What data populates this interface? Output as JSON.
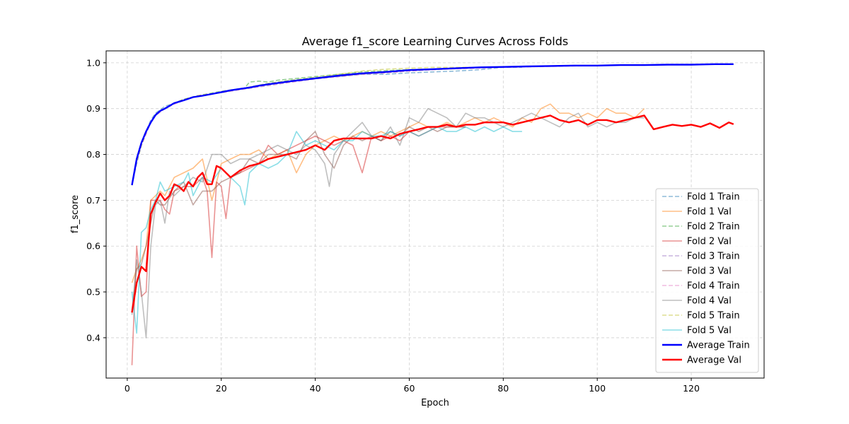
{
  "chart_data": {
    "type": "line",
    "title": "Average f1_score Learning Curves Across Folds",
    "xlabel": "Epoch",
    "ylabel": "f1_score",
    "xlim": [
      -4.5,
      135.5
    ],
    "ylim": [
      0.312,
      1.026
    ],
    "xticks": [
      "0",
      "20",
      "40",
      "60",
      "80",
      "100",
      "120"
    ],
    "yticks": [
      "0.4",
      "0.5",
      "0.6",
      "0.7",
      "0.8",
      "0.9",
      "1.0"
    ],
    "grid": true,
    "legend_position": "lower-right",
    "series": [
      {
        "name": "Fold 1 Train",
        "color": "#1f77b4",
        "style": "dashed",
        "alpha": 0.5,
        "x": [
          1,
          2,
          3,
          4,
          5,
          6,
          8,
          10,
          12,
          15,
          20,
          25,
          30,
          35,
          40,
          45,
          50,
          55,
          60,
          65,
          70,
          75,
          80,
          84
        ],
        "y": [
          0.733,
          0.78,
          0.82,
          0.85,
          0.875,
          0.89,
          0.905,
          0.912,
          0.92,
          0.928,
          0.935,
          0.945,
          0.955,
          0.962,
          0.968,
          0.97,
          0.975,
          0.975,
          0.978,
          0.98,
          0.982,
          0.985,
          0.99,
          0.99
        ]
      },
      {
        "name": "Fold 1 Val",
        "color": "#ff7f0e",
        "style": "solid",
        "alpha": 0.5,
        "x": [
          1,
          2,
          3,
          4,
          5,
          6,
          7,
          8,
          9,
          10,
          12,
          14,
          16,
          18,
          20,
          22,
          24,
          26,
          28,
          30,
          32,
          34,
          36,
          38,
          40,
          42,
          44,
          46,
          48,
          50,
          52,
          54,
          56,
          58,
          60,
          62,
          64,
          66,
          68,
          70,
          72,
          74,
          76,
          78,
          80,
          82,
          84,
          86,
          88,
          90,
          92,
          94,
          96,
          98,
          100,
          102,
          104,
          106,
          108,
          110
        ],
        "y": [
          0.52,
          0.55,
          0.57,
          0.6,
          0.7,
          0.71,
          0.72,
          0.71,
          0.73,
          0.75,
          0.76,
          0.77,
          0.79,
          0.7,
          0.78,
          0.79,
          0.8,
          0.8,
          0.81,
          0.79,
          0.8,
          0.81,
          0.76,
          0.8,
          0.82,
          0.83,
          0.84,
          0.83,
          0.84,
          0.85,
          0.84,
          0.85,
          0.84,
          0.85,
          0.86,
          0.87,
          0.86,
          0.86,
          0.87,
          0.86,
          0.87,
          0.88,
          0.87,
          0.88,
          0.87,
          0.86,
          0.88,
          0.87,
          0.9,
          0.91,
          0.89,
          0.89,
          0.88,
          0.89,
          0.88,
          0.9,
          0.89,
          0.89,
          0.88,
          0.9
        ]
      },
      {
        "name": "Fold 2 Train",
        "color": "#2ca02c",
        "style": "dashed",
        "alpha": 0.5,
        "x": [
          1,
          2,
          3,
          4,
          5,
          6,
          8,
          10,
          12,
          15,
          20,
          25,
          26,
          28,
          30,
          32,
          35,
          40,
          45,
          50,
          55,
          60,
          65,
          70,
          72
        ],
        "y": [
          0.733,
          0.79,
          0.82,
          0.85,
          0.87,
          0.888,
          0.9,
          0.912,
          0.92,
          0.928,
          0.938,
          0.945,
          0.958,
          0.96,
          0.958,
          0.962,
          0.965,
          0.97,
          0.975,
          0.98,
          0.983,
          0.985,
          0.986,
          0.988,
          0.99
        ]
      },
      {
        "name": "Fold 2 Val",
        "color": "#d62728",
        "style": "solid",
        "alpha": 0.5,
        "x": [
          1,
          2,
          3,
          4,
          5,
          6,
          7,
          8,
          9,
          10,
          12,
          14,
          16,
          17,
          18,
          19,
          20,
          21,
          22,
          24,
          26,
          28,
          30,
          32,
          34,
          36,
          38,
          40,
          42,
          44,
          46,
          48,
          50,
          52,
          54,
          56,
          58,
          60,
          62,
          64,
          66,
          68,
          70,
          72
        ],
        "y": [
          0.34,
          0.6,
          0.49,
          0.5,
          0.7,
          0.7,
          0.7,
          0.68,
          0.67,
          0.72,
          0.73,
          0.73,
          0.75,
          0.72,
          0.575,
          0.74,
          0.73,
          0.66,
          0.75,
          0.76,
          0.77,
          0.78,
          0.82,
          0.8,
          0.81,
          0.82,
          0.83,
          0.84,
          0.83,
          0.82,
          0.83,
          0.82,
          0.76,
          0.84,
          0.83,
          0.84,
          0.83,
          0.85,
          0.84,
          0.85,
          0.86,
          0.86,
          0.86,
          0.86
        ]
      },
      {
        "name": "Fold 3 Train",
        "color": "#9467bd",
        "style": "dashed",
        "alpha": 0.5,
        "x": [
          1,
          2,
          3,
          4,
          5,
          6,
          8,
          10,
          12,
          15,
          20,
          25,
          30,
          35,
          40,
          45,
          50,
          55,
          60,
          65,
          70,
          73
        ],
        "y": [
          0.733,
          0.785,
          0.82,
          0.845,
          0.87,
          0.885,
          0.9,
          0.91,
          0.918,
          0.928,
          0.935,
          0.943,
          0.95,
          0.958,
          0.965,
          0.97,
          0.975,
          0.978,
          0.982,
          0.985,
          0.988,
          0.99
        ]
      },
      {
        "name": "Fold 3 Val",
        "color": "#8c564b",
        "style": "solid",
        "alpha": 0.5,
        "x": [
          1,
          2,
          3,
          4,
          5,
          6,
          7,
          8,
          10,
          12,
          14,
          16,
          18,
          20,
          22,
          24,
          26,
          28,
          30,
          32,
          34,
          36,
          38,
          40,
          42,
          44,
          46,
          48,
          50,
          52,
          54,
          56,
          58,
          60,
          62,
          64,
          66,
          68,
          70,
          72
        ],
        "y": [
          0.46,
          0.55,
          0.56,
          0.6,
          0.65,
          0.7,
          0.69,
          0.69,
          0.72,
          0.74,
          0.69,
          0.72,
          0.72,
          0.74,
          0.75,
          0.76,
          0.79,
          0.78,
          0.8,
          0.8,
          0.8,
          0.79,
          0.83,
          0.85,
          0.8,
          0.77,
          0.82,
          0.84,
          0.83,
          0.84,
          0.83,
          0.85,
          0.84,
          0.86,
          0.85,
          0.86,
          0.85,
          0.86,
          0.86,
          0.86
        ]
      },
      {
        "name": "Fold 4 Train",
        "color": "#e377c2",
        "style": "dashed",
        "alpha": 0.5,
        "x": [
          1,
          2,
          3,
          4,
          5,
          6,
          8,
          10,
          12,
          15,
          20,
          25,
          30,
          35,
          40,
          45,
          50,
          55,
          60,
          65,
          70,
          75,
          80,
          85,
          90,
          95,
          100,
          105,
          110
        ],
        "y": [
          0.733,
          0.785,
          0.82,
          0.845,
          0.87,
          0.885,
          0.9,
          0.91,
          0.918,
          0.928,
          0.935,
          0.943,
          0.952,
          0.958,
          0.965,
          0.97,
          0.975,
          0.978,
          0.982,
          0.985,
          0.987,
          0.988,
          0.99,
          0.991,
          0.992,
          0.993,
          0.994,
          0.995,
          0.996
        ]
      },
      {
        "name": "Fold 4 Val",
        "color": "#7f7f7f",
        "style": "solid",
        "alpha": 0.5,
        "x": [
          1,
          2,
          3,
          4,
          5,
          6,
          7,
          8,
          9,
          10,
          12,
          14,
          16,
          18,
          20,
          22,
          24,
          26,
          28,
          30,
          32,
          34,
          36,
          38,
          40,
          42,
          43,
          44,
          46,
          48,
          50,
          52,
          54,
          56,
          58,
          60,
          62,
          64,
          66,
          68,
          70,
          72,
          74,
          76,
          78,
          80,
          82,
          84,
          86,
          88,
          90,
          92,
          94,
          96,
          98,
          100,
          102,
          104,
          106,
          108,
          110
        ],
        "y": [
          0.45,
          0.57,
          0.5,
          0.4,
          0.6,
          0.69,
          0.7,
          0.65,
          0.72,
          0.71,
          0.73,
          0.75,
          0.74,
          0.8,
          0.8,
          0.78,
          0.79,
          0.79,
          0.8,
          0.81,
          0.82,
          0.81,
          0.8,
          0.82,
          0.81,
          0.78,
          0.73,
          0.8,
          0.83,
          0.85,
          0.87,
          0.84,
          0.83,
          0.86,
          0.82,
          0.88,
          0.87,
          0.9,
          0.89,
          0.88,
          0.86,
          0.89,
          0.88,
          0.88,
          0.87,
          0.86,
          0.87,
          0.88,
          0.89,
          0.88,
          0.87,
          0.86,
          0.88,
          0.89,
          0.86,
          0.87,
          0.86,
          0.87,
          0.87,
          0.88,
          0.88
        ]
      },
      {
        "name": "Fold 5 Train",
        "color": "#bcbd22",
        "style": "dashed",
        "alpha": 0.5,
        "x": [
          1,
          2,
          3,
          4,
          5,
          6,
          8,
          10,
          12,
          15,
          20,
          25,
          30,
          35,
          40,
          45,
          50,
          55,
          60,
          65,
          70,
          73
        ],
        "y": [
          0.733,
          0.785,
          0.82,
          0.85,
          0.87,
          0.888,
          0.9,
          0.912,
          0.92,
          0.928,
          0.935,
          0.945,
          0.955,
          0.962,
          0.968,
          0.975,
          0.982,
          0.986,
          0.988,
          0.99,
          0.99,
          0.99
        ]
      },
      {
        "name": "Fold 5 Val",
        "color": "#17becf",
        "style": "solid",
        "alpha": 0.5,
        "x": [
          1,
          2,
          3,
          4,
          5,
          6,
          7,
          8,
          10,
          12,
          13,
          14,
          16,
          18,
          20,
          22,
          24,
          25,
          26,
          28,
          30,
          32,
          34,
          36,
          38,
          40,
          42,
          44,
          46,
          48,
          50,
          52,
          54,
          56,
          58,
          60,
          62,
          64,
          66,
          68,
          70,
          72,
          74,
          76,
          78,
          80,
          82,
          84
        ],
        "y": [
          0.5,
          0.41,
          0.63,
          0.64,
          0.68,
          0.7,
          0.74,
          0.72,
          0.73,
          0.74,
          0.76,
          0.71,
          0.75,
          0.74,
          0.77,
          0.75,
          0.73,
          0.69,
          0.76,
          0.78,
          0.77,
          0.78,
          0.8,
          0.85,
          0.82,
          0.83,
          0.82,
          0.81,
          0.83,
          0.83,
          0.85,
          0.84,
          0.84,
          0.85,
          0.84,
          0.85,
          0.84,
          0.85,
          0.86,
          0.85,
          0.85,
          0.86,
          0.85,
          0.86,
          0.85,
          0.86,
          0.85,
          0.85
        ]
      },
      {
        "name": "Average Train",
        "color": "#0000ff",
        "style": "solid",
        "alpha": 1,
        "x": [
          1,
          2,
          3,
          4,
          5,
          6,
          7,
          8,
          10,
          12,
          14,
          16,
          18,
          20,
          22,
          24,
          26,
          28,
          30,
          35,
          40,
          45,
          50,
          55,
          60,
          65,
          70,
          75,
          80,
          85,
          90,
          95,
          100,
          105,
          110,
          115,
          120,
          125,
          129
        ],
        "y": [
          0.733,
          0.79,
          0.825,
          0.85,
          0.87,
          0.886,
          0.895,
          0.9,
          0.912,
          0.918,
          0.925,
          0.928,
          0.932,
          0.936,
          0.94,
          0.943,
          0.946,
          0.95,
          0.953,
          0.96,
          0.966,
          0.972,
          0.977,
          0.98,
          0.984,
          0.986,
          0.988,
          0.99,
          0.991,
          0.992,
          0.993,
          0.994,
          0.994,
          0.995,
          0.995,
          0.996,
          0.996,
          0.997,
          0.997
        ]
      },
      {
        "name": "Average Val",
        "color": "#ff0000",
        "style": "solid",
        "alpha": 1,
        "x": [
          1,
          2,
          3,
          4,
          5,
          6,
          7,
          8,
          9,
          10,
          11,
          12,
          13,
          14,
          15,
          16,
          17,
          18,
          19,
          20,
          22,
          24,
          26,
          28,
          30,
          32,
          34,
          36,
          38,
          40,
          42,
          44,
          46,
          48,
          50,
          52,
          54,
          56,
          58,
          60,
          62,
          64,
          66,
          68,
          70,
          72,
          74,
          76,
          78,
          80,
          82,
          84,
          86,
          88,
          90,
          92,
          94,
          96,
          98,
          100,
          102,
          104,
          106,
          108,
          110,
          112,
          114,
          116,
          118,
          120,
          122,
          124,
          126,
          128,
          129
        ],
        "y": [
          0.455,
          0.52,
          0.555,
          0.545,
          0.67,
          0.695,
          0.715,
          0.7,
          0.71,
          0.735,
          0.73,
          0.72,
          0.74,
          0.73,
          0.75,
          0.76,
          0.735,
          0.735,
          0.775,
          0.77,
          0.75,
          0.765,
          0.775,
          0.78,
          0.79,
          0.795,
          0.8,
          0.805,
          0.81,
          0.82,
          0.81,
          0.83,
          0.835,
          0.835,
          0.835,
          0.835,
          0.84,
          0.835,
          0.845,
          0.85,
          0.855,
          0.86,
          0.86,
          0.865,
          0.86,
          0.865,
          0.865,
          0.87,
          0.87,
          0.87,
          0.865,
          0.87,
          0.875,
          0.88,
          0.885,
          0.875,
          0.87,
          0.875,
          0.865,
          0.875,
          0.875,
          0.87,
          0.875,
          0.88,
          0.885,
          0.855,
          0.86,
          0.865,
          0.862,
          0.865,
          0.86,
          0.868,
          0.858,
          0.87,
          0.866
        ]
      }
    ]
  }
}
